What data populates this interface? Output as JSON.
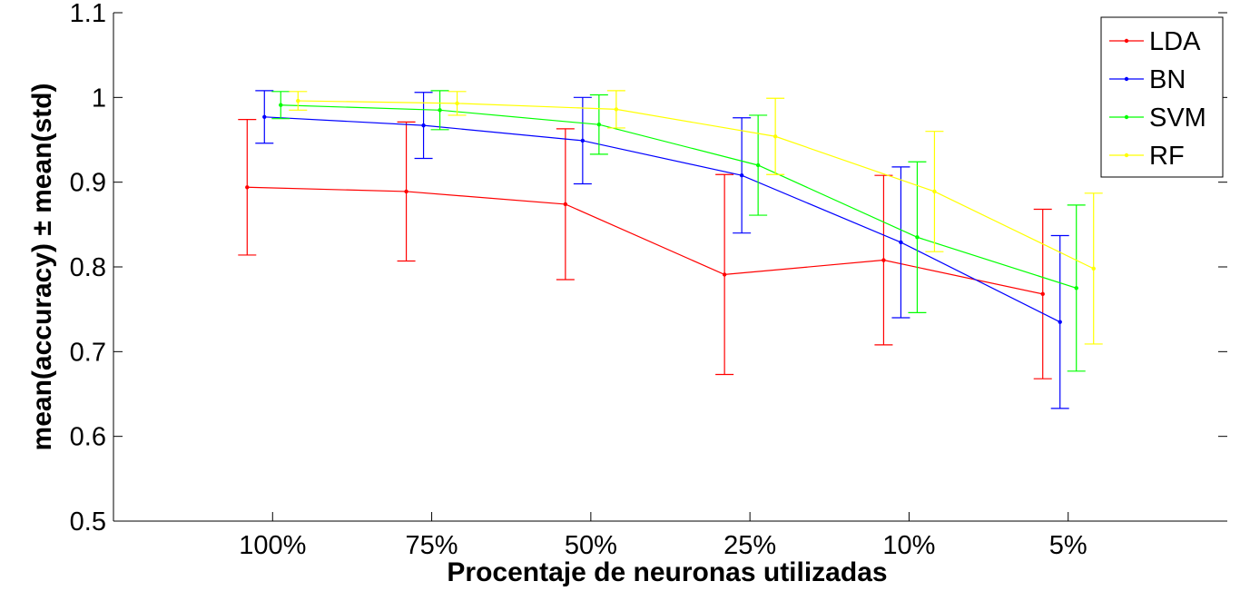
{
  "chart_data": {
    "type": "line",
    "title": "",
    "xlabel": "Procentaje de neuronas utilizadas",
    "ylabel": "mean(accuracy) ± mean(std)",
    "categories": [
      "100%",
      "75%",
      "50%",
      "25%",
      "10%",
      "5%"
    ],
    "ylim": [
      0.5,
      1.1
    ],
    "yticks": [
      "0.5",
      "0.6",
      "0.7",
      "0.8",
      "0.9",
      "1",
      "1.1"
    ],
    "grid": false,
    "legend_position": "top-right",
    "error_bars": true,
    "series": [
      {
        "name": "LDA",
        "color": "#ff0000",
        "values": [
          0.894,
          0.889,
          0.874,
          0.791,
          0.808,
          0.768
        ],
        "err": [
          0.08,
          0.082,
          0.089,
          0.118,
          0.1,
          0.1
        ]
      },
      {
        "name": "BN",
        "color": "#0000ff",
        "values": [
          0.977,
          0.967,
          0.949,
          0.908,
          0.829,
          0.735
        ],
        "err": [
          0.031,
          0.039,
          0.051,
          0.068,
          0.089,
          0.102
        ]
      },
      {
        "name": "SVM",
        "color": "#00ff00",
        "values": [
          0.991,
          0.985,
          0.968,
          0.92,
          0.835,
          0.775
        ],
        "err": [
          0.016,
          0.023,
          0.035,
          0.059,
          0.089,
          0.098
        ]
      },
      {
        "name": "RF",
        "color": "#ffff00",
        "values": [
          0.996,
          0.993,
          0.986,
          0.954,
          0.889,
          0.798
        ],
        "err": [
          0.011,
          0.014,
          0.022,
          0.045,
          0.071,
          0.089
        ]
      }
    ]
  }
}
